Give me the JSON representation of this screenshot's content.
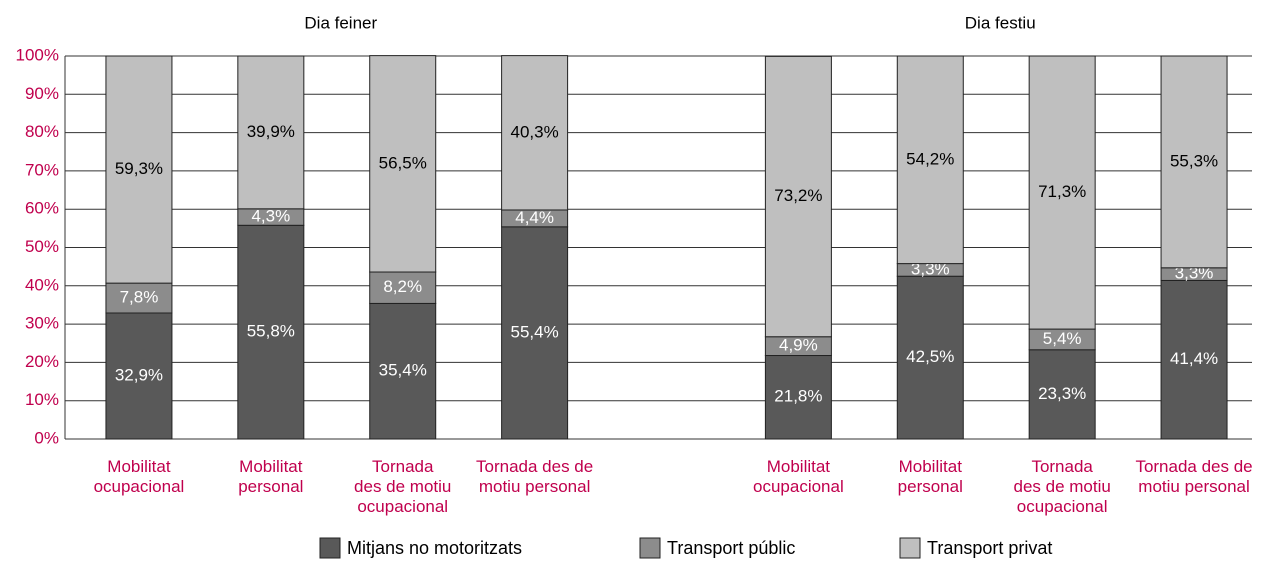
{
  "chart_data": {
    "type": "stacked_bar",
    "annotations": [
      "Dia feiner",
      "Dia festiu"
    ],
    "categories": [
      "Mobilitat\nocupacional",
      "Mobilitat\npersonal",
      "Tornada\ndes de motiu\nocupacional",
      "Tornada des de\nmotiu personal",
      null,
      "Mobilitat\nocupacional",
      "Mobilitat\npersonal",
      "Tornada\ndes de motiu\nocupacional",
      "Tornada des de\nmotiu personal"
    ],
    "series": [
      {
        "name": "Mitjans no motoritzats",
        "color": "#595959",
        "label_color": "#ffffff",
        "values": [
          32.9,
          55.8,
          35.4,
          55.4,
          null,
          21.8,
          42.5,
          23.3,
          41.4
        ],
        "value_labels": [
          "32,9%",
          "55,8%",
          "35,4%",
          "55,4%",
          null,
          "21,8%",
          "42,5%",
          "23,3%",
          "41,4%"
        ]
      },
      {
        "name": "Transport públic",
        "color": "#8c8c8c",
        "label_color": "#ffffff",
        "values": [
          7.8,
          4.3,
          8.2,
          4.4,
          null,
          4.9,
          3.3,
          5.4,
          3.3
        ],
        "value_labels": [
          "7,8%",
          "4,3%",
          "8,2%",
          "4,4%",
          null,
          "4,9%",
          "3,3%",
          "5,4%",
          "3,3%"
        ]
      },
      {
        "name": "Transport privat",
        "color": "#bfbfbf",
        "label_color": "#000000",
        "values": [
          59.3,
          39.9,
          56.5,
          40.3,
          null,
          73.2,
          54.2,
          71.3,
          55.3
        ],
        "value_labels": [
          "59,3%",
          "39,9%",
          "56,5%",
          "40,3%",
          null,
          "73,2%",
          "54,2%",
          "71,3%",
          "55,3%"
        ]
      }
    ],
    "ylim": [
      0,
      100
    ],
    "yticks": [
      {
        "value": 0,
        "label": "0%"
      },
      {
        "value": 10,
        "label": "10%"
      },
      {
        "value": 20,
        "label": "20%"
      },
      {
        "value": 30,
        "label": "30%"
      },
      {
        "value": 40,
        "label": "40%"
      },
      {
        "value": 50,
        "label": "50%"
      },
      {
        "value": 60,
        "label": "60%"
      },
      {
        "value": 70,
        "label": "70%"
      },
      {
        "value": 80,
        "label": "80%"
      },
      {
        "value": 90,
        "label": "90%"
      },
      {
        "value": 100,
        "label": "100%"
      }
    ],
    "grid": true,
    "tick_color": "#c0004d",
    "legend": "bottom"
  }
}
